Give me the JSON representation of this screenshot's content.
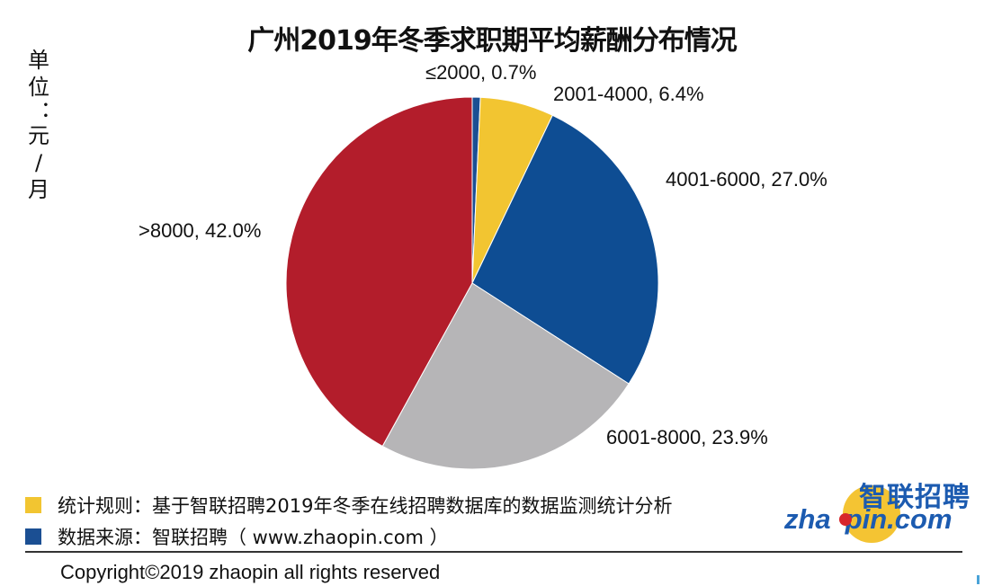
{
  "chart_data": {
    "type": "pie",
    "title": "广州2019年冬季求职期平均薪酬分布情况",
    "unit_label": "单位：元/月",
    "slices": [
      {
        "label": "≤2000, 0.7%",
        "category": "≤2000",
        "value": 0.7,
        "color": "#1b4f93"
      },
      {
        "label": "2001-4000, 6.4%",
        "category": "2001-4000",
        "value": 6.4,
        "color": "#f2c531"
      },
      {
        "label": "4001-6000, 27.0%",
        "category": "4001-6000",
        "value": 27.0,
        "color": "#0e4d93"
      },
      {
        "label": "6001-8000, 23.9%",
        "category": "6001-8000",
        "value": 23.9,
        "color": "#b6b5b7"
      },
      {
        "label": ">8000, 42.0%",
        "category": ">8000",
        "value": 42.0,
        "color": "#b31d2b"
      }
    ]
  },
  "legend": [
    {
      "text": "统计规则：基于智联招聘2019年冬季在线招聘数据库的数据监测统计分析",
      "color": "#f2c531"
    },
    {
      "text": "数据来源：智联招聘（ www.zhaopin.com ）",
      "color": "#1b4f93"
    }
  ],
  "logo": {
    "chinese": "智联招聘",
    "english_left": "zha",
    "english_right": "pin.com"
  },
  "copyright": "Copyright©2019 zhaopin all rights reserved"
}
